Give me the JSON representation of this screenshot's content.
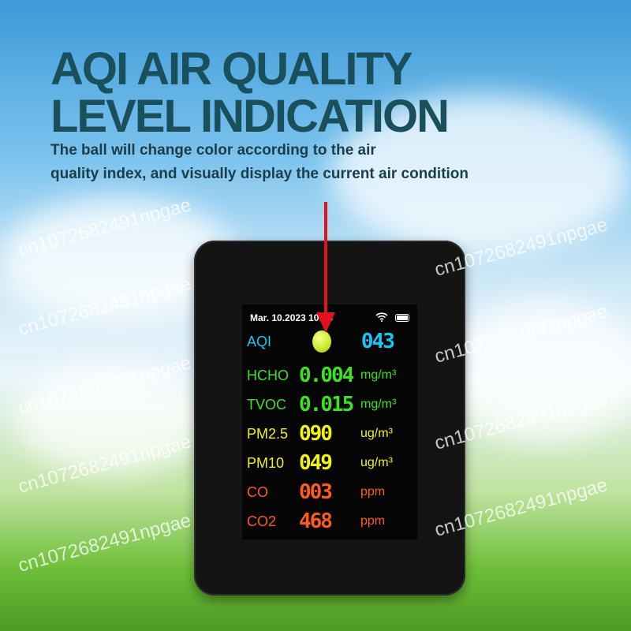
{
  "heading": {
    "line1": "AQI AIR QUALITY",
    "line2": "LEVEL INDICATION"
  },
  "subtitle": {
    "line1": "The ball will change color according to the air",
    "line2": "quality index, and visually display the current air condition"
  },
  "screen": {
    "status": {
      "datetime": "Mar. 10.2023 10:44",
      "wifi_icon": "wifi-icon",
      "battery_icon": "battery-icon"
    },
    "aqi": {
      "label": "AQI",
      "value": "043",
      "ball_color": "#c8e82a",
      "color": "#19c6f2"
    },
    "rows": [
      {
        "label": "HCHO",
        "value": "0.004",
        "unit": "mg/m³",
        "color": "#3ee023"
      },
      {
        "label": "TVOC",
        "value": "0.015",
        "unit": "mg/m³",
        "color": "#3ee023"
      },
      {
        "label": "PM2.5",
        "value": "090",
        "unit": "ug/m³",
        "color": "#f2f20f"
      },
      {
        "label": "PM10",
        "value": "049",
        "unit": "ug/m³",
        "color": "#f2f20f"
      },
      {
        "label": "CO",
        "value": "003",
        "unit": "ppm",
        "color": "#ff5a1f"
      },
      {
        "label": "CO2",
        "value": "468",
        "unit": "ppm",
        "color": "#ff5a1f"
      }
    ]
  },
  "watermark": "cn1072682491npgae"
}
